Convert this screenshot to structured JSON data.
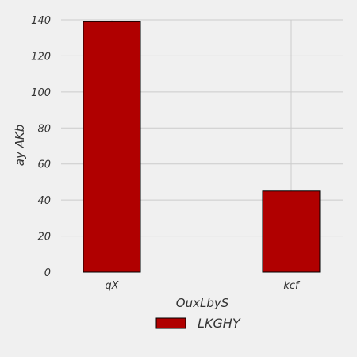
{
  "colors": {
    "background": "#f0f0f0",
    "bar": "#b00000",
    "bar_edge": "#000000",
    "grid": "#cbcbcb",
    "text": "#333333"
  },
  "chart_data": {
    "type": "bar",
    "categories": [
      "qX",
      "kcf"
    ],
    "series": [
      {
        "name": "LKGHY",
        "values": [
          139,
          45
        ]
      }
    ],
    "xlabel": "OuxLbyS",
    "ylabel": "ay  AKb",
    "ylim": [
      0,
      140
    ],
    "yticks": [
      0,
      20,
      40,
      60,
      80,
      100,
      120,
      140
    ],
    "grid": true,
    "legend_position": "bottom-center"
  }
}
